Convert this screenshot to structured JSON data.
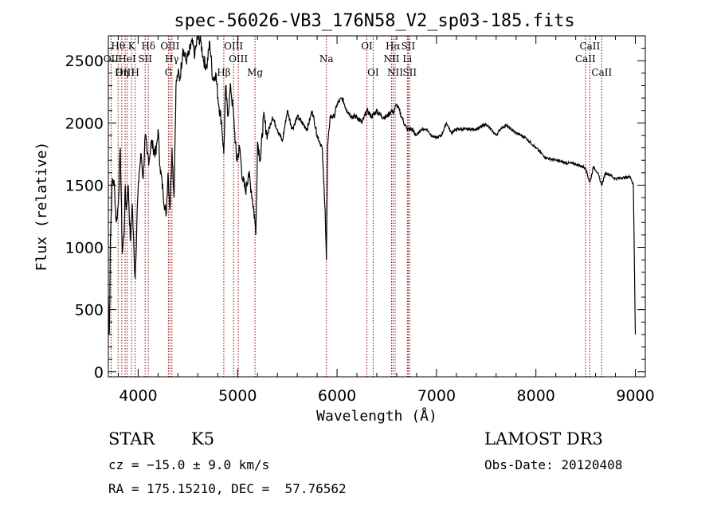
{
  "chart_data": {
    "type": "line",
    "title": "spec-56026-VB3_176N58_V2_sp03-185.fits",
    "xlabel": "Wavelength (Å)",
    "ylabel": "Flux (relative)",
    "xlim": [
      3700,
      9100
    ],
    "ylim": [
      -40,
      2700
    ],
    "xticks": [
      4000,
      5000,
      6000,
      7000,
      8000,
      9000
    ],
    "yticks": [
      0,
      500,
      1000,
      1500,
      2000,
      2500
    ],
    "grid": false,
    "series": [
      {
        "color": "#000000",
        "x": [
          3700,
          3710,
          3720,
          3740,
          3760,
          3780,
          3800,
          3820,
          3840,
          3860,
          3870,
          3880,
          3900,
          3920,
          3940,
          3960,
          3970,
          3990,
          4010,
          4030,
          4050,
          4070,
          4090,
          4110,
          4130,
          4150,
          4180,
          4200,
          4220,
          4250,
          4280,
          4300,
          4320,
          4340,
          4360,
          4380,
          4400,
          4420,
          4450,
          4480,
          4510,
          4540,
          4570,
          4600,
          4630,
          4660,
          4690,
          4720,
          4750,
          4780,
          4810,
          4840,
          4861,
          4880,
          4900,
          4930,
          4960,
          4990,
          5020,
          5050,
          5080,
          5110,
          5140,
          5170,
          5183,
          5200,
          5230,
          5260,
          5300,
          5350,
          5400,
          5450,
          5500,
          5550,
          5600,
          5650,
          5700,
          5750,
          5800,
          5850,
          5880,
          5893,
          5905,
          5930,
          5970,
          6000,
          6050,
          6100,
          6150,
          6200,
          6250,
          6300,
          6350,
          6400,
          6450,
          6500,
          6550,
          6563,
          6600,
          6650,
          6700,
          6750,
          6800,
          6850,
          6900,
          6950,
          7000,
          7050,
          7100,
          7150,
          7200,
          7300,
          7400,
          7500,
          7600,
          7650,
          7700,
          7800,
          7900,
          8000,
          8100,
          8200,
          8300,
          8400,
          8498,
          8542,
          8580,
          8620,
          8662,
          8700,
          8750,
          8800,
          8850,
          8900,
          8950,
          8980,
          9000
        ],
        "values": [
          600,
          300,
          1050,
          1550,
          1500,
          1200,
          1350,
          1800,
          950,
          1150,
          1500,
          1300,
          1500,
          1050,
          1350,
          900,
          750,
          1300,
          1600,
          1750,
          1550,
          1900,
          1750,
          1700,
          1850,
          1800,
          1750,
          1950,
          1650,
          1450,
          1250,
          1600,
          1300,
          1800,
          1400,
          2300,
          2400,
          2350,
          2600,
          2500,
          2550,
          2650,
          2550,
          2700,
          2650,
          2500,
          2450,
          2650,
          2350,
          2400,
          2150,
          2000,
          1750,
          2300,
          2050,
          2300,
          2050,
          1700,
          1800,
          1550,
          1450,
          1600,
          1450,
          1250,
          1100,
          1850,
          1700,
          2050,
          1900,
          2050,
          1950,
          1850,
          2100,
          1950,
          2050,
          2000,
          1950,
          2100,
          1900,
          1800,
          1300,
          900,
          1800,
          2050,
          2050,
          2150,
          2200,
          2100,
          2050,
          2050,
          2000,
          2100,
          2050,
          2100,
          2050,
          2050,
          2100,
          2080,
          2150,
          2050,
          1950,
          1950,
          1900,
          1950,
          1950,
          1900,
          1880,
          1900,
          2000,
          1920,
          1950,
          1950,
          1950,
          1990,
          1900,
          1960,
          1980,
          1920,
          1880,
          1800,
          1720,
          1700,
          1680,
          1670,
          1640,
          1520,
          1650,
          1600,
          1500,
          1600,
          1580,
          1550,
          1560,
          1560,
          1570,
          1500,
          300
        ]
      }
    ],
    "emission_lines": [
      {
        "name": "Hθ",
        "wave": 3798,
        "row": 0
      },
      {
        "name": "OII",
        "wave": 3727,
        "row": 1
      },
      {
        "name": "OIII",
        "wave": 3869,
        "row": 2
      },
      {
        "name": "K",
        "wave": 3934,
        "row": 0
      },
      {
        "name": "Hη",
        "wave": 3835,
        "row": 2
      },
      {
        "name": "HeI",
        "wave": 3889,
        "row": 1
      },
      {
        "name": "H",
        "wave": 3970,
        "row": 2
      },
      {
        "name": "SII",
        "wave": 4070,
        "row": 1
      },
      {
        "name": "Hδ",
        "wave": 4102,
        "row": 0
      },
      {
        "name": "OIII",
        "wave": 4320,
        "row": 0
      },
      {
        "name": "Hγ",
        "wave": 4340,
        "row": 1
      },
      {
        "name": "G",
        "wave": 4304,
        "row": 2
      },
      {
        "name": "Hβ",
        "wave": 4861,
        "row": 2
      },
      {
        "name": "OIII",
        "wave": 4959,
        "row": 0
      },
      {
        "name": "OIII",
        "wave": 5007,
        "row": 1
      },
      {
        "name": "Mg",
        "wave": 5175,
        "row": 2
      },
      {
        "name": "Na",
        "wave": 5893,
        "row": 1
      },
      {
        "name": "OI",
        "wave": 6300,
        "row": 0
      },
      {
        "name": "OI",
        "wave": 6363,
        "row": 2
      },
      {
        "name": "Hα",
        "wave": 6563,
        "row": 0
      },
      {
        "name": "SII",
        "wave": 6716,
        "row": 0
      },
      {
        "name": "NII",
        "wave": 6548,
        "row": 1
      },
      {
        "name": "Li",
        "wave": 6707,
        "row": 1
      },
      {
        "name": "NII",
        "wave": 6584,
        "row": 2
      },
      {
        "name": "SII",
        "wave": 6731,
        "row": 2
      },
      {
        "name": "CaII",
        "wave": 8542,
        "row": 0
      },
      {
        "name": "CaII",
        "wave": 8498,
        "row": 1
      },
      {
        "name": "CaII",
        "wave": 8662,
        "row": 2
      }
    ],
    "line_color": "#8b0000"
  },
  "info": {
    "class": "STAR",
    "subclass": "K5",
    "survey": "LAMOST DR3",
    "cz": "cz = −15.0 ± 9.0 km/s",
    "obs_date": "Obs-Date: 20120408",
    "coords": "RA = 175.15210, DEC =  57.76562"
  }
}
